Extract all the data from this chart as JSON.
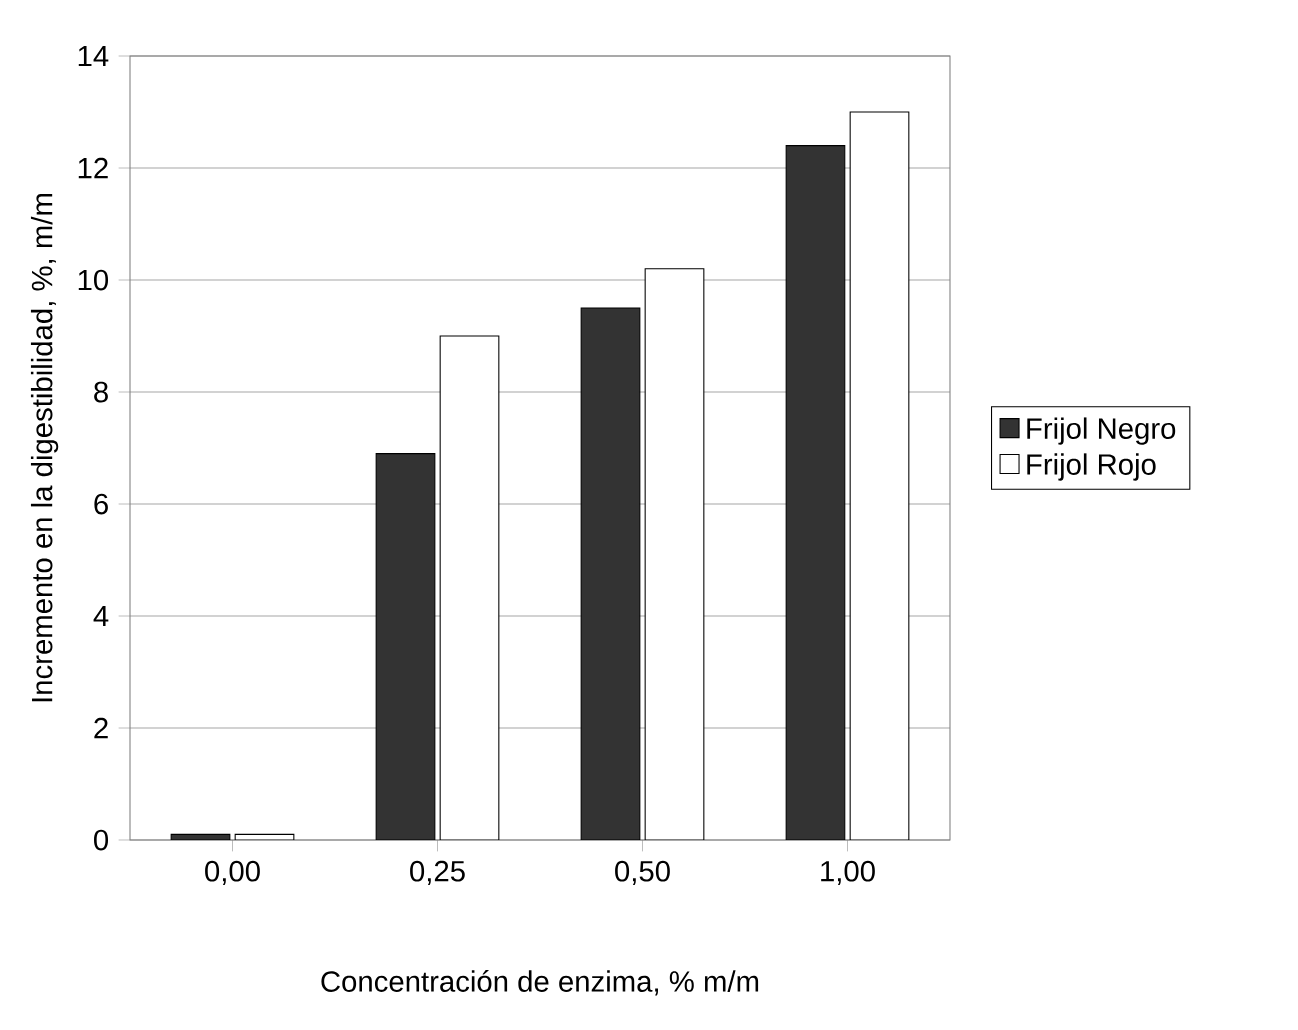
{
  "chart_data": {
    "type": "bar",
    "xlabel": "Concentración de enzima, % m/m",
    "ylabel": "Incremento en la digestibilidad, %, m/m",
    "categories": [
      "0,00",
      "0,25",
      "0,50",
      "1,00"
    ],
    "series": [
      {
        "name": "Frijol Negro",
        "color": "#333333",
        "values": [
          0.1,
          6.9,
          9.5,
          12.4
        ]
      },
      {
        "name": "Frijol Rojo",
        "color": "#ffffff",
        "values": [
          0.1,
          9.0,
          10.2,
          13.0
        ]
      }
    ],
    "ylim": [
      0,
      14
    ],
    "yticks": [
      0,
      2,
      4,
      6,
      8,
      10,
      12,
      14
    ],
    "grid": "y",
    "legend": "right"
  }
}
